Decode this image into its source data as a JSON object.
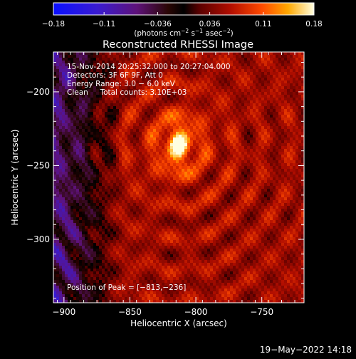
{
  "chart_data": {
    "type": "heatmap",
    "title": "Reconstructed RHESSI Image",
    "xlabel": "Heliocentric X (arcsec)",
    "ylabel": "Heliocentric Y (arcsec)",
    "xlim": [
      -908,
      -718
    ],
    "ylim": [
      -343,
      -173
    ],
    "x_ticks": [
      -900,
      -850,
      -800,
      -750
    ],
    "y_ticks": [
      -200,
      -250,
      -300
    ],
    "x_tick_labels": [
      "−900",
      "−850",
      "−800",
      "−750"
    ],
    "y_tick_labels": [
      "−200",
      "−250",
      "−300"
    ],
    "colorbar": {
      "range": [
        -0.18,
        0.18
      ],
      "ticks": [
        -0.18,
        -0.11,
        -0.036,
        0.036,
        0.11,
        0.18
      ],
      "tick_labels": [
        "−0.18",
        "−0.11",
        "−0.036",
        "0.036",
        "0.11",
        "0.18"
      ],
      "unit_label_parts": [
        "(photons cm",
        "−2",
        " s",
        "−1",
        " asec",
        "−2",
        ")"
      ]
    },
    "annotations": [
      "15-Nov-2014 20:25:32.000 to 20:27:04.000",
      "Detectors: 3F 6F 9F, Att 0",
      "Energy Range: 3.0 − 6.0 keV",
      "Clean     Total counts: 3.10E+03"
    ],
    "peak_label": "Position of Peak = [−813,−236]",
    "peak": [
      -813,
      -236
    ],
    "footer_date": "19−May−2022 14:18",
    "colors": {
      "background": "#000000",
      "axes": "#ffffff"
    }
  }
}
